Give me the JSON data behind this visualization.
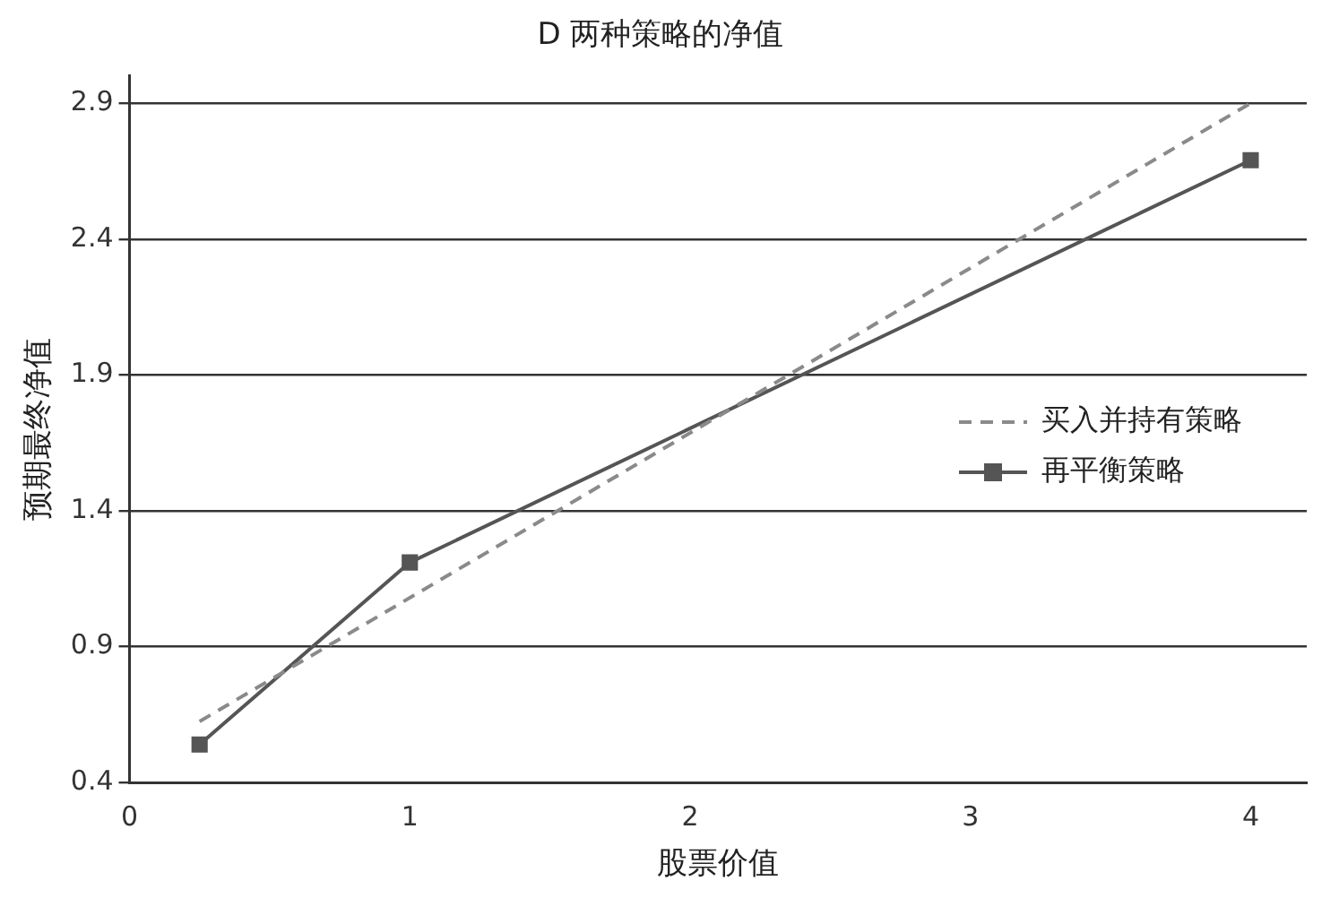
{
  "chart_data": {
    "type": "line",
    "title": "D 两种策略的净值",
    "xlabel": "股票价值",
    "ylabel": "预期最终净值",
    "xlim": [
      0,
      4.2
    ],
    "xticks": [
      0,
      1,
      2,
      3,
      4
    ],
    "ylim": [
      0.4,
      3.0
    ],
    "yticks": [
      0.4,
      0.9,
      1.4,
      1.9,
      2.4,
      2.9
    ],
    "grid": "y",
    "legend": "right",
    "series": [
      {
        "name": "买入并持有策略",
        "color": "#8a8a8a",
        "line_style": "dashed",
        "marker": "none",
        "x": [
          0.25,
          4
        ],
        "values": [
          0.625,
          2.9
        ]
      },
      {
        "name": "再平衡策略",
        "color": "#555555",
        "line_style": "solid",
        "marker": "square",
        "x": [
          0.25,
          1,
          4
        ],
        "values": [
          0.54,
          1.21,
          2.69
        ]
      }
    ]
  }
}
